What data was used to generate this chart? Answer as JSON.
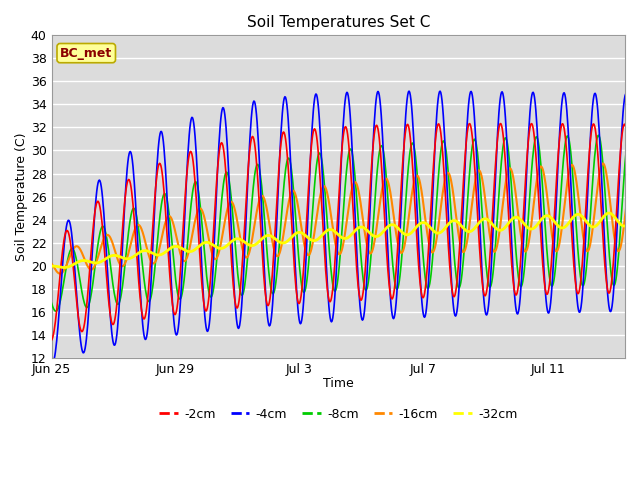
{
  "title": "Soil Temperatures Set C",
  "xlabel": "Time",
  "ylabel": "Soil Temperature (C)",
  "ylim": [
    12,
    40
  ],
  "plot_bg_color": "#dcdcdc",
  "grid_color": "#ffffff",
  "annotation_text": "BC_met",
  "annotation_bg": "#ffff99",
  "annotation_border": "#bbaa00",
  "annotation_text_color": "#8b0000",
  "legend_entries": [
    "-2cm",
    "-4cm",
    "-8cm",
    "-16cm",
    "-32cm"
  ],
  "line_colors": [
    "#ff0000",
    "#0000ff",
    "#00cc00",
    "#ff8800",
    "#ffff00"
  ],
  "line_widths": [
    1.2,
    1.2,
    1.2,
    1.5,
    2.0
  ],
  "n_days": 19,
  "x_tick_positions": [
    0,
    4,
    8,
    12,
    16
  ],
  "x_tick_labels": [
    "Jun 25",
    "Jun 29",
    "Jul 3",
    "Jul 7",
    "Jul 11"
  ],
  "xlim": [
    0,
    18.5
  ]
}
